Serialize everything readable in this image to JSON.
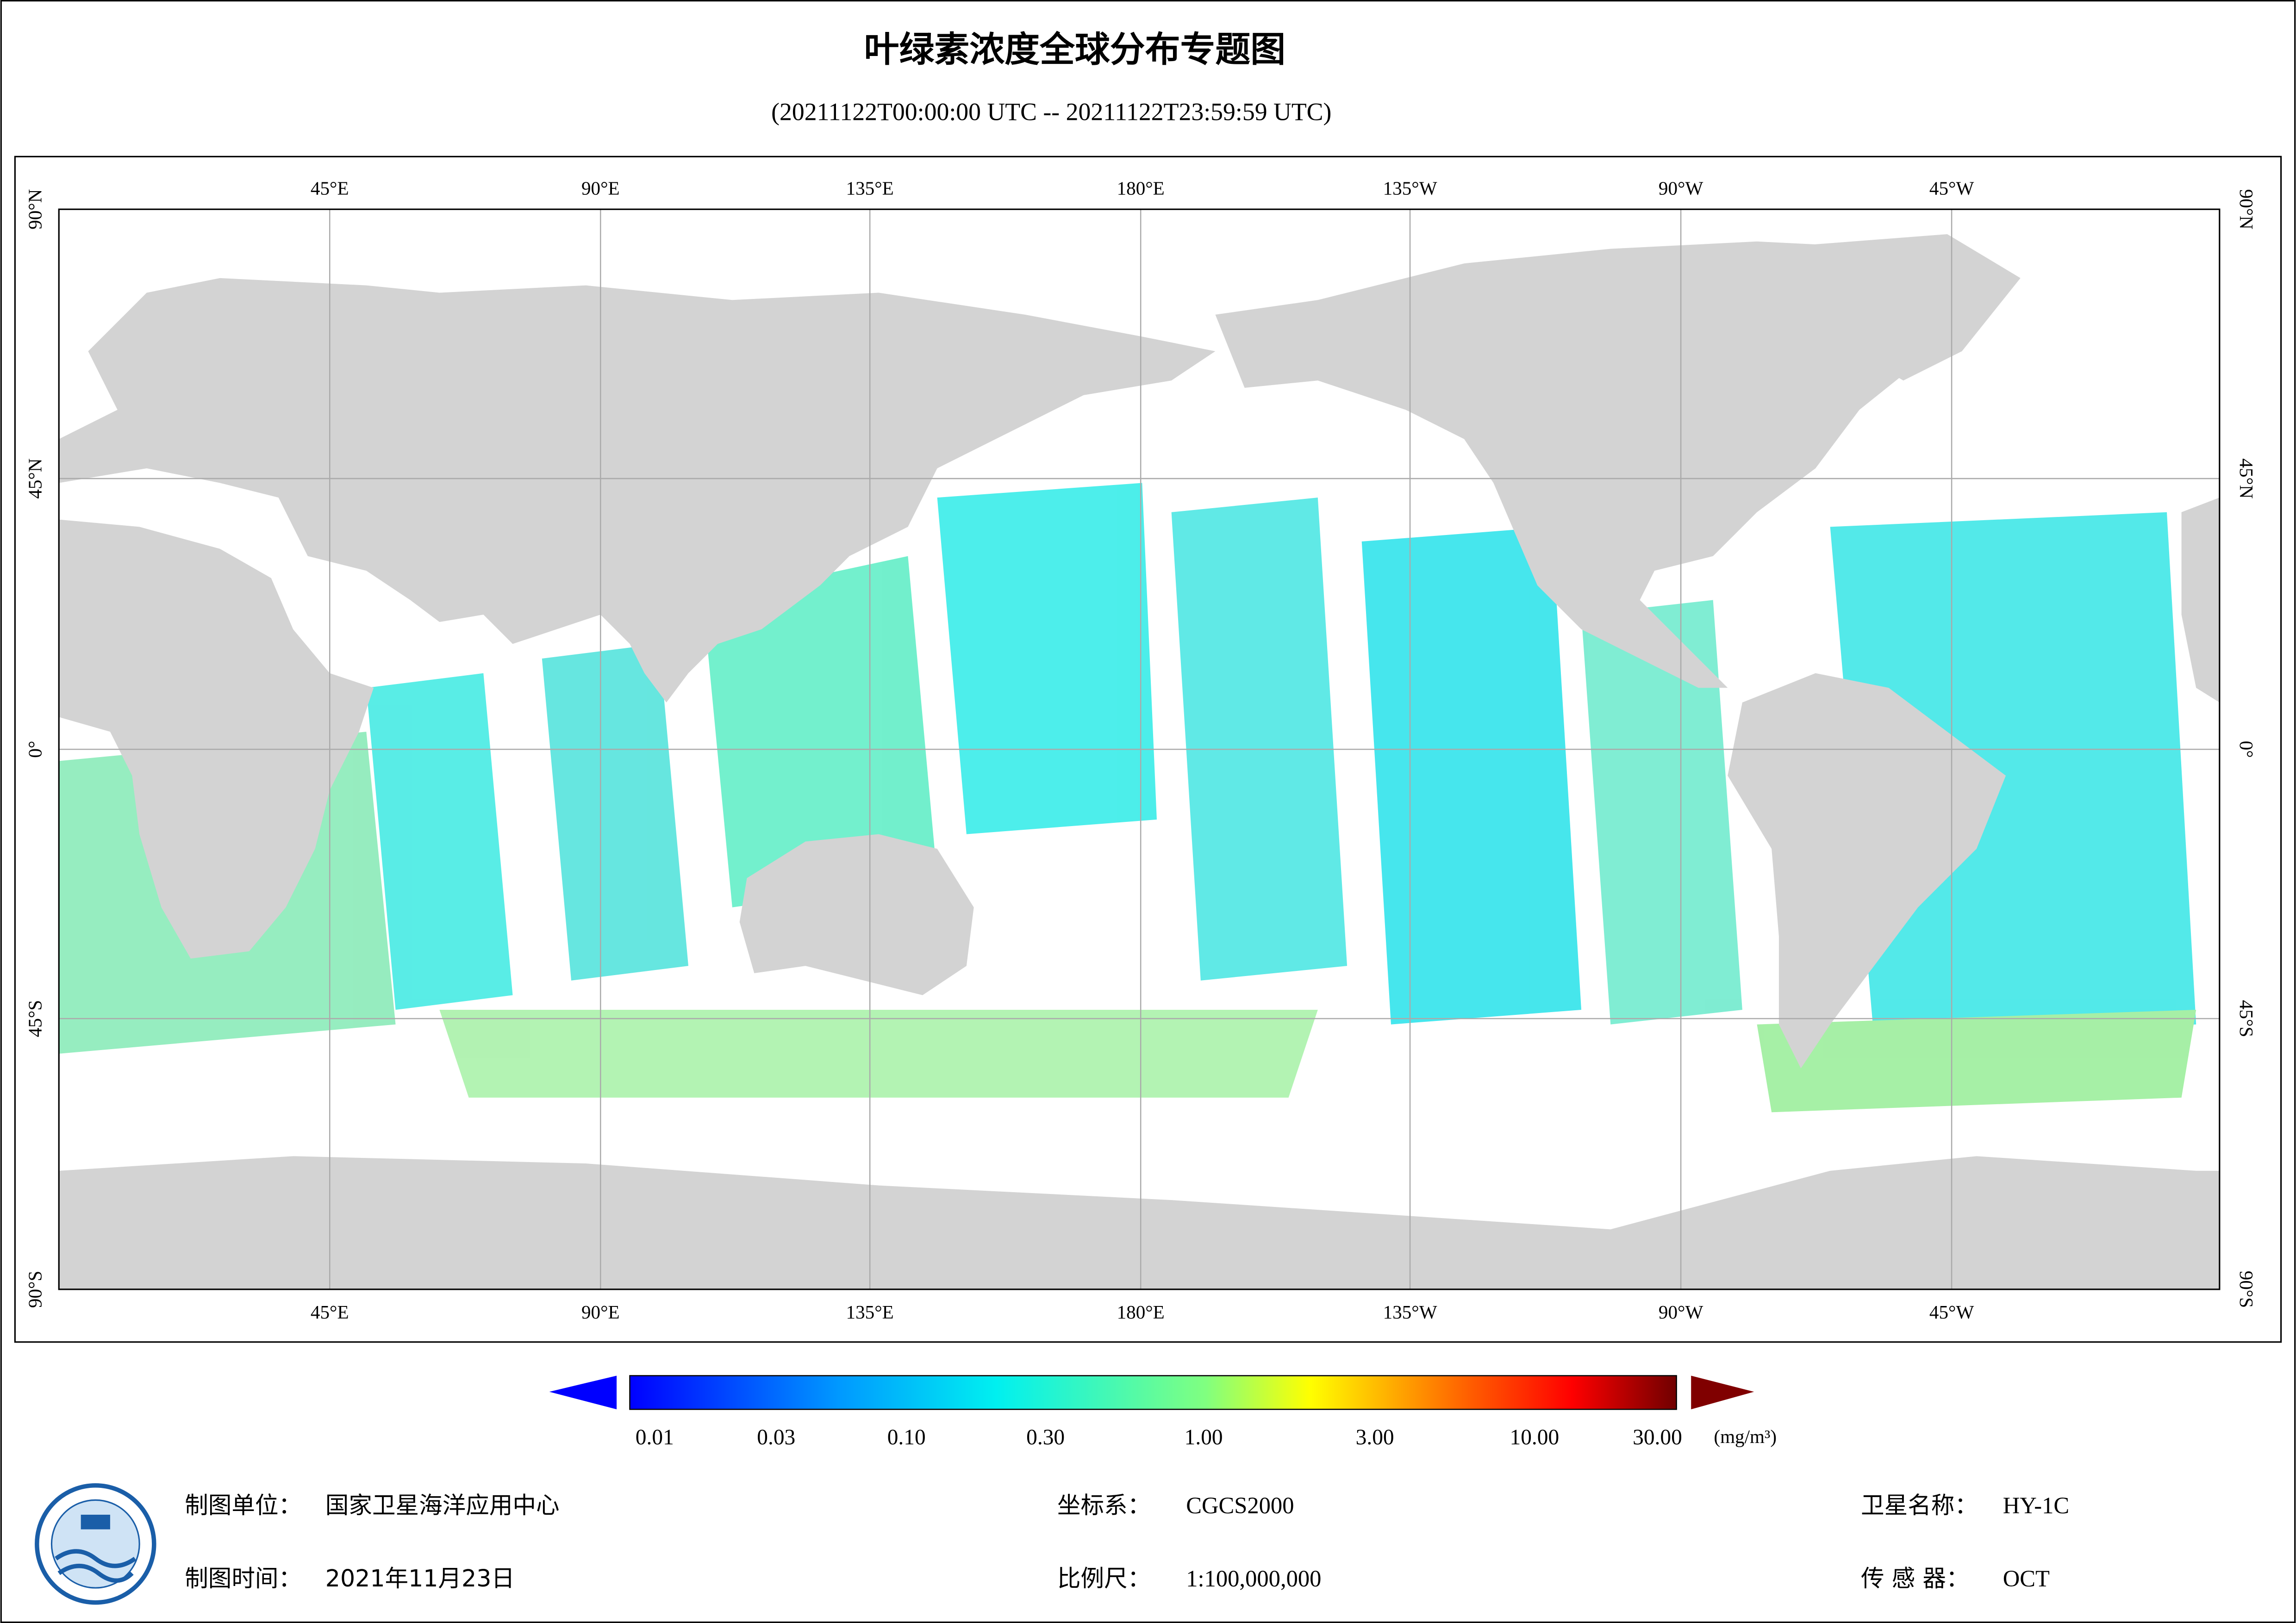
{
  "header": {
    "title": "叶绿素浓度全球分布专题图",
    "subtitle": "(20211122T00:00:00 UTC -- 20211122T23:59:59 UTC)"
  },
  "map": {
    "lon_labels": [
      "45°E",
      "90°E",
      "135°E",
      "180°E",
      "135°W",
      "90°W",
      "45°W"
    ],
    "lat_labels": [
      "90°N",
      "45°N",
      "0°",
      "45°S",
      "90°S"
    ]
  },
  "legend": {
    "labels": [
      "0.01",
      "0.03",
      "0.10",
      "0.30",
      "1.00",
      "3.00",
      "10.00",
      "30.00"
    ],
    "unit": "(mg/m³)"
  },
  "footer": {
    "unit_label": "制图单位：",
    "unit": "国家卫星海洋应用中心",
    "time_label": "制图时间：",
    "time": "2021年11月23日",
    "crs_label": "坐标系：",
    "crs": "CGCS2000",
    "scale_label": "比例尺：",
    "scale": "1:100,000,000",
    "satellite_label": "卫星名称：",
    "satellite": "HY-1C",
    "sensor_label": "传 感 器：",
    "sensor": "OCT"
  }
}
